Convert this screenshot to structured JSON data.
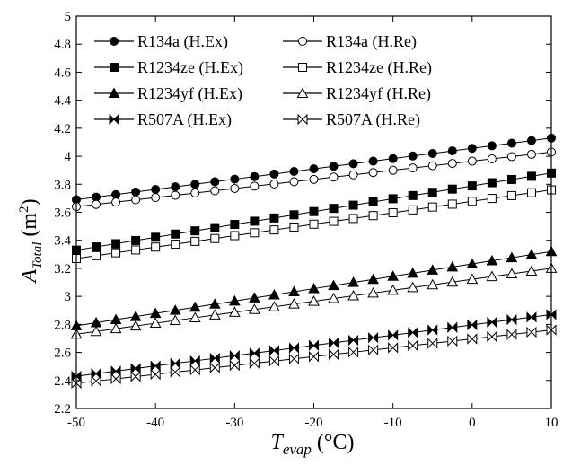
{
  "chart_data": {
    "type": "line",
    "xlabel": "T_evap (°C)",
    "ylabel": "A_Total (m²)",
    "xlim": [
      -50,
      10
    ],
    "ylim": [
      2.2,
      5
    ],
    "xticks": [
      -50,
      -40,
      -30,
      -20,
      -10,
      0,
      10
    ],
    "yticks": [
      2.2,
      2.4,
      2.6,
      2.8,
      3,
      3.2,
      3.4,
      3.6,
      3.8,
      4,
      4.2,
      4.4,
      4.6,
      4.8,
      5
    ],
    "xtick_labels": [
      "-50",
      "-40",
      "-30",
      "-20",
      "-10",
      "0",
      "10"
    ],
    "ytick_labels": [
      "2.2",
      "2.4",
      "2.6",
      "2.8",
      "3",
      "3.2",
      "3.4",
      "3.6",
      "3.8",
      "4",
      "4.2",
      "4.4",
      "4.6",
      "4.8",
      "5"
    ],
    "grid": false,
    "legend_position": "top-left",
    "x": [
      -50,
      -47.5,
      -45,
      -42.5,
      -40,
      -37.5,
      -35,
      -32.5,
      -30,
      -27.5,
      -25,
      -22.5,
      -20,
      -17.5,
      -15,
      -12.5,
      -10,
      -7.5,
      -5,
      -2.5,
      0,
      2.5,
      5,
      7.5,
      10
    ],
    "series": [
      {
        "name": "R134a (H.Ex)",
        "marker": "circle-filled",
        "start": 3.69,
        "end": 4.13
      },
      {
        "name": "R134a (H.Re)",
        "marker": "circle-open",
        "start": 3.64,
        "end": 4.03
      },
      {
        "name": "R1234ze (H.Ex)",
        "marker": "square-filled",
        "start": 3.33,
        "end": 3.88
      },
      {
        "name": "R1234ze (H.Re)",
        "marker": "square-open",
        "start": 3.27,
        "end": 3.76
      },
      {
        "name": "R1234yf (H.Ex)",
        "marker": "triangle-filled",
        "start": 2.79,
        "end": 3.32
      },
      {
        "name": "R1234yf (H.Re)",
        "marker": "triangle-open",
        "start": 2.73,
        "end": 3.2
      },
      {
        "name": "R507A (H.Ex)",
        "marker": "bowtie-filled",
        "start": 2.43,
        "end": 2.87
      },
      {
        "name": "R507A (H.Re)",
        "marker": "bowtie-open",
        "start": 2.38,
        "end": 2.76
      }
    ]
  },
  "axis_labels": {
    "y_main": "A",
    "y_sub": "Total",
    "y_unit_open": " (m",
    "y_unit_sup": "2",
    "y_unit_close": ")",
    "x_main": "T",
    "x_sub": "evap",
    "x_unit": " (°C)"
  },
  "legend": {
    "entries": [
      {
        "label": "R134a (H.Ex)",
        "marker": "circle-filled"
      },
      {
        "label": "R134a (H.Re)",
        "marker": "circle-open"
      },
      {
        "label": "R1234ze (H.Ex)",
        "marker": "square-filled"
      },
      {
        "label": "R1234ze (H.Re)",
        "marker": "square-open"
      },
      {
        "label": "R1234yf (H.Ex)",
        "marker": "triangle-filled"
      },
      {
        "label": "R1234yf (H.Re)",
        "marker": "triangle-open"
      },
      {
        "label": "R507A (H.Ex)",
        "marker": "bowtie-filled"
      },
      {
        "label": "R507A (H.Re)",
        "marker": "bowtie-open"
      }
    ]
  },
  "colors": {
    "line": "#000000",
    "background": "#ffffff"
  }
}
